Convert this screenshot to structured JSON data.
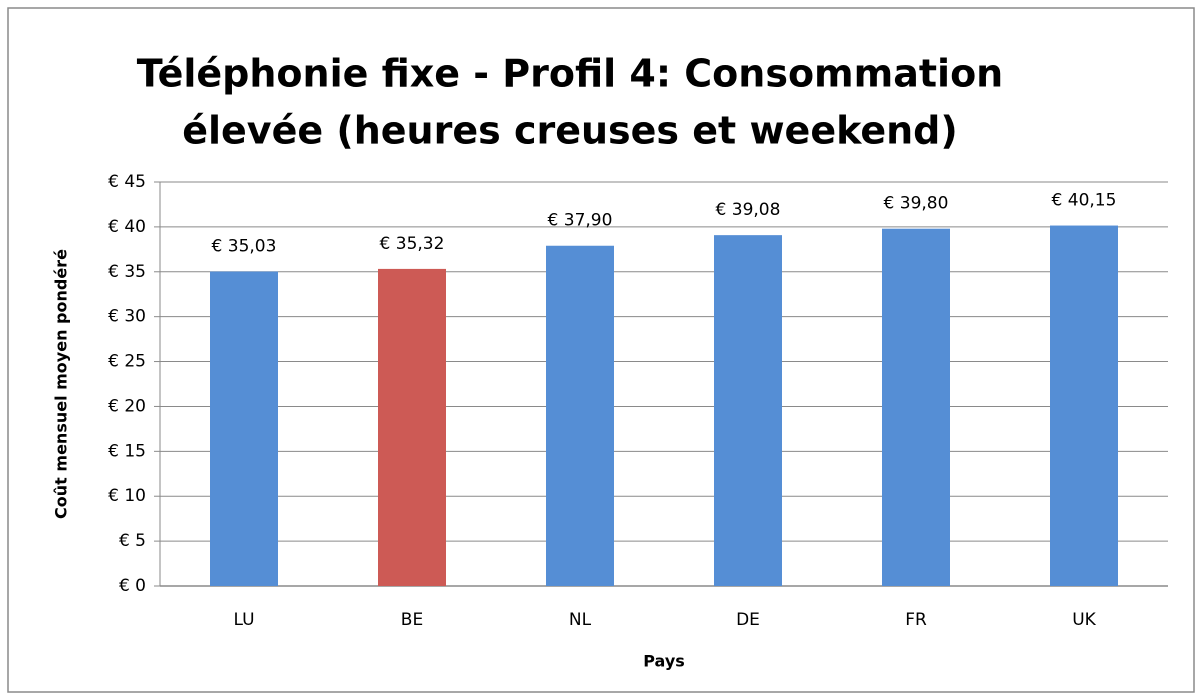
{
  "chart_data": {
    "type": "bar",
    "title": [
      "Téléphonie fixe - Profil 4:  Consommation",
      "élevée (heures creuses et weekend)"
    ],
    "x_label": "Pays",
    "y_label": "Coût mensuel moyen pondéré",
    "categories": [
      "LU",
      "BE",
      "NL",
      "DE",
      "FR",
      "UK"
    ],
    "values": [
      35.03,
      35.32,
      37.9,
      39.08,
      39.8,
      40.15
    ],
    "value_labels": [
      "€ 35,03",
      "€ 35,32",
      "€ 37,90",
      "€ 39,08",
      "€ 39,80",
      "€ 40,15"
    ],
    "colors": [
      "#558ed5",
      "#cd5a55",
      "#558ed5",
      "#558ed5",
      "#558ed5",
      "#558ed5"
    ],
    "ylim": [
      0,
      45
    ],
    "yticks": [
      {
        "value": 0,
        "label": "€ 0"
      },
      {
        "value": 5,
        "label": "€ 5"
      },
      {
        "value": 10,
        "label": "€ 10"
      },
      {
        "value": 15,
        "label": "€ 15"
      },
      {
        "value": 20,
        "label": "€ 20"
      },
      {
        "value": 25,
        "label": "€ 25"
      },
      {
        "value": 30,
        "label": "€ 30"
      },
      {
        "value": 35,
        "label": "€ 35"
      },
      {
        "value": 40,
        "label": "€ 40"
      },
      {
        "value": 45,
        "label": "€ 45"
      }
    ],
    "grid": true
  }
}
